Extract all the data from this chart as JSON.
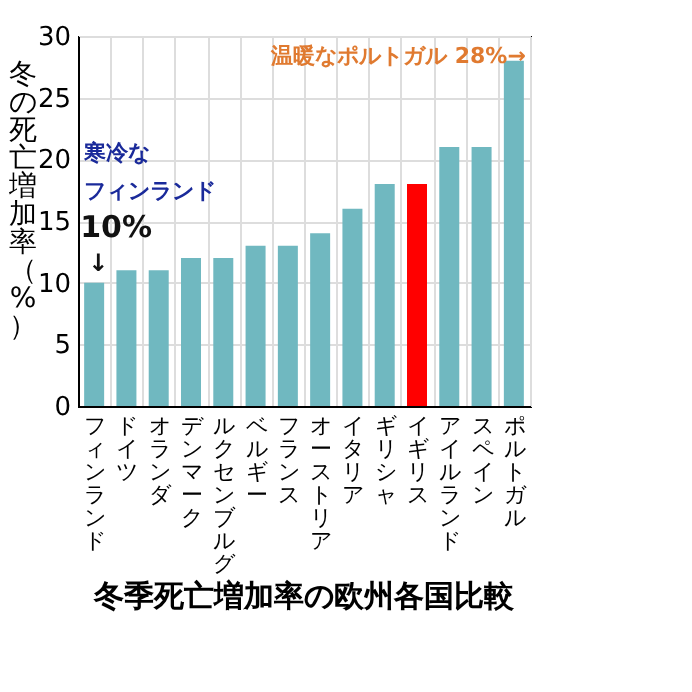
{
  "chart_data": {
    "type": "bar",
    "title": "冬季死亡増加率の欧州各国比較",
    "ylabel": "冬の死亡増加率（%）",
    "categories": [
      "フィンランド",
      "ドイツ",
      "オランダ",
      "デンマーク",
      "ルクセンブルグ",
      "ベルギー",
      "フランス",
      "オーストリア",
      "イタリア",
      "ギリシャ",
      "イギリス",
      "アイルランド",
      "スペイン",
      "ポルトガル"
    ],
    "values": [
      10,
      11,
      11,
      12,
      12,
      13,
      13,
      14,
      16,
      18,
      18,
      21,
      21,
      28
    ],
    "colors": [
      "#70b8c0",
      "#70b8c0",
      "#70b8c0",
      "#70b8c0",
      "#70b8c0",
      "#70b8c0",
      "#70b8c0",
      "#70b8c0",
      "#70b8c0",
      "#70b8c0",
      "#ff0000",
      "#70b8c0",
      "#70b8c0",
      "#70b8c0"
    ],
    "ylim": [
      0,
      30
    ],
    "yticks": [
      0,
      5,
      10,
      15,
      20,
      25,
      30
    ],
    "grid": true,
    "annotations": [
      "寒冷な",
      "フィンランド",
      {
        "text": "10%",
        "x": "フィンランド",
        "y": 10
      },
      {
        "text": "↓",
        "x": "フィンランド",
        "y": 10
      },
      {
        "text": "温暖なポルトガル 28%→",
        "x": "ポルトガル",
        "y": 28
      }
    ]
  }
}
